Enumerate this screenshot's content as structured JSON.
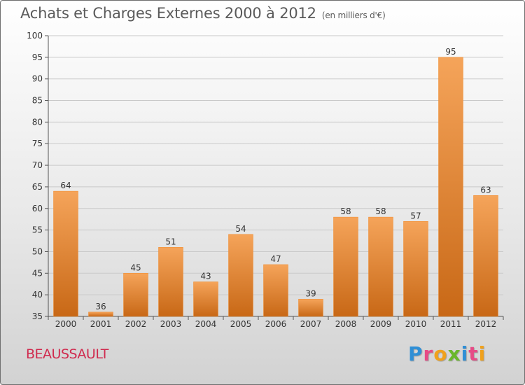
{
  "header": {
    "title": "Achats et Charges Externes 2000 à 2012",
    "subtitle": "(en milliers d'€)"
  },
  "footer": {
    "commune": "BEAUSSAULT",
    "brand_letters": [
      "P",
      "r",
      "o",
      "x",
      "i",
      "t",
      "i"
    ],
    "brand_colors": [
      "#2f8fd6",
      "#e64b86",
      "#f0a11c",
      "#69b72a",
      "#2f8fd6",
      "#e64b86",
      "#f0a11c"
    ]
  },
  "chart_data": {
    "type": "bar",
    "categories": [
      "2000",
      "2001",
      "2002",
      "2003",
      "2004",
      "2005",
      "2006",
      "2007",
      "2008",
      "2009",
      "2010",
      "2011",
      "2012"
    ],
    "values": [
      64,
      36,
      45,
      51,
      43,
      54,
      47,
      39,
      58,
      58,
      57,
      95,
      63
    ],
    "title": "Achats et Charges Externes 2000 à 2012",
    "subtitle": "(en milliers d'€)",
    "ylim": [
      35,
      100
    ],
    "yticks": [
      35,
      40,
      45,
      50,
      55,
      60,
      65,
      70,
      75,
      80,
      85,
      90,
      95,
      100
    ],
    "grid": true,
    "bar_color": "#f08a2a",
    "bar_color_light": "#f5a45a",
    "bar_color_dark": "#c86816"
  }
}
